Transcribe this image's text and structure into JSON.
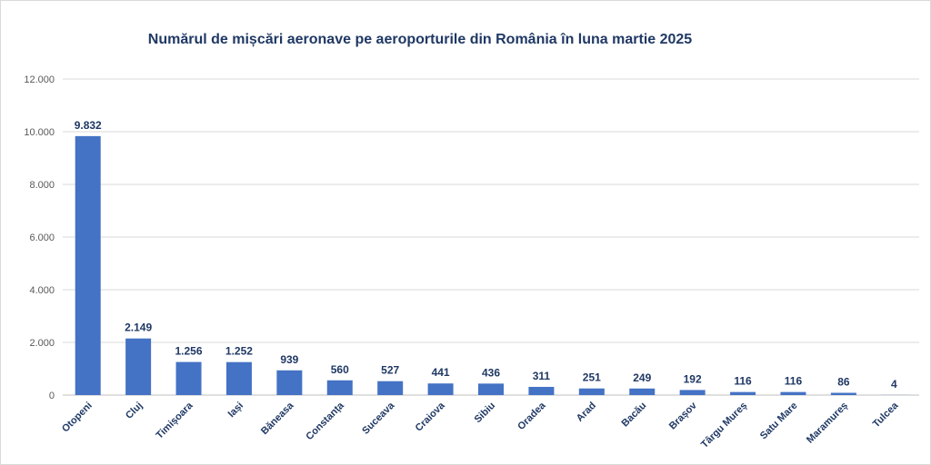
{
  "chart_data": {
    "type": "bar",
    "title": "Numărul de mișcări aeronave pe aeroporturile din România în luna martie 2025",
    "categories": [
      "Otopeni",
      "Cluj",
      "Timișoara",
      "Iași",
      "Băneasa",
      "Constanța",
      "Suceava",
      "Craiova",
      "Sibiu",
      "Oradea",
      "Arad",
      "Bacău",
      "Brașov",
      "Târgu Mureș",
      "Satu Mare",
      "Maramureș",
      "Tulcea"
    ],
    "values": [
      9832,
      2149,
      1256,
      1252,
      939,
      560,
      527,
      441,
      436,
      311,
      251,
      249,
      192,
      116,
      116,
      86,
      4
    ],
    "value_labels": [
      "9.832",
      "2.149",
      "1.256",
      "1.252",
      "939",
      "560",
      "527",
      "441",
      "436",
      "311",
      "251",
      "249",
      "192",
      "116",
      "116",
      "86",
      "4"
    ],
    "ylim": [
      0,
      12000
    ],
    "yticks": [
      0,
      2000,
      4000,
      6000,
      8000,
      10000,
      12000
    ],
    "ytick_labels": [
      "0",
      "2.000",
      "4.000",
      "6.000",
      "8.000",
      "10.000",
      "12.000"
    ],
    "grid": true,
    "bar_color": "#4472c4",
    "text_color": "#1f3864"
  }
}
